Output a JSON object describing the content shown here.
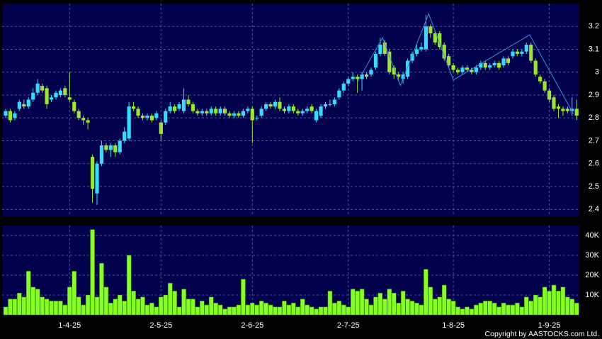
{
  "chart_data": [
    {
      "type": "candlestick",
      "up_color": "#33ddff",
      "down_color": "#9be62e",
      "grid": true,
      "ylim": [
        2.37,
        3.3
      ],
      "yticks": [
        2.4,
        2.5,
        2.6,
        2.7,
        2.8,
        2.9,
        3,
        3.1,
        3.2
      ],
      "open": [
        2.81,
        2.83,
        2.8,
        2.84,
        2.86,
        2.85,
        2.88,
        2.91,
        2.94,
        2.93,
        2.88,
        2.89,
        2.9,
        2.93,
        2.89,
        2.87,
        2.83,
        2.8,
        2.79,
        2.63,
        2.47,
        2.6,
        2.68,
        2.66,
        2.68,
        2.65,
        2.7,
        2.71,
        2.85,
        2.84,
        2.81,
        2.8,
        2.81,
        2.8,
        2.78,
        2.78,
        2.83,
        2.85,
        2.84,
        2.83,
        2.88,
        2.86,
        2.83,
        2.82,
        2.83,
        2.82,
        2.84,
        2.82,
        2.84,
        2.82,
        2.81,
        2.82,
        2.81,
        2.83,
        2.84,
        2.8,
        2.81,
        2.84,
        2.86,
        2.85,
        2.87,
        2.84,
        2.83,
        2.85,
        2.83,
        2.82,
        2.83,
        2.85,
        2.79,
        2.81,
        2.85,
        2.86,
        2.86,
        2.89,
        2.92,
        2.95,
        2.97,
        2.98,
        2.97,
        2.99,
        2.99,
        3.02,
        3.08,
        3.13,
        3.09,
        3.02,
        2.99,
        2.97,
        2.98,
        3.05,
        3.08,
        3.1,
        3.1,
        3.2,
        3.17,
        3.17,
        3.12,
        3.07,
        3.03,
        3.01,
        3.0,
        3.02,
        3.01,
        3.0,
        3.02,
        3.04,
        3.02,
        3.03,
        3.04,
        3.03,
        3.06,
        3.07,
        3.09,
        3.08,
        3.09,
        3.12,
        3.05,
        2.98,
        2.96,
        2.92,
        2.89,
        2.85,
        2.84,
        2.84,
        2.83,
        2.84
      ],
      "high": [
        2.84,
        2.84,
        2.83,
        2.88,
        2.88,
        2.89,
        2.93,
        2.97,
        2.95,
        2.94,
        2.9,
        2.92,
        2.93,
        2.94,
        3.0,
        2.88,
        2.84,
        2.81,
        2.8,
        2.64,
        2.61,
        2.7,
        2.69,
        2.69,
        2.69,
        2.71,
        2.76,
        2.87,
        2.87,
        2.85,
        2.82,
        2.82,
        2.82,
        2.83,
        2.79,
        2.84,
        2.87,
        2.86,
        2.87,
        2.93,
        2.9,
        2.87,
        2.84,
        2.84,
        2.84,
        2.85,
        2.85,
        2.85,
        2.85,
        2.83,
        2.83,
        2.83,
        2.84,
        2.85,
        2.85,
        2.81,
        2.85,
        2.87,
        2.87,
        2.88,
        2.89,
        2.85,
        2.86,
        2.86,
        2.84,
        2.84,
        2.85,
        2.86,
        2.84,
        2.86,
        2.87,
        2.88,
        2.89,
        2.93,
        2.96,
        2.98,
        3.0,
        2.99,
        3.0,
        3.0,
        3.02,
        3.09,
        3.15,
        3.14,
        3.1,
        3.03,
        3.0,
        3.0,
        3.06,
        3.09,
        3.12,
        3.13,
        3.25,
        3.21,
        3.18,
        3.18,
        3.13,
        3.08,
        3.04,
        3.02,
        3.03,
        3.03,
        3.02,
        3.03,
        3.05,
        3.05,
        3.04,
        3.05,
        3.05,
        3.07,
        3.07,
        3.1,
        3.1,
        3.1,
        3.13,
        3.13,
        3.06,
        2.99,
        2.97,
        2.93,
        2.9,
        2.86,
        2.85,
        2.85,
        2.89,
        2.88
      ],
      "low": [
        2.8,
        2.78,
        2.79,
        2.83,
        2.84,
        2.84,
        2.87,
        2.9,
        2.91,
        2.84,
        2.87,
        2.88,
        2.89,
        2.89,
        2.87,
        2.82,
        2.79,
        2.77,
        2.75,
        2.43,
        2.42,
        2.59,
        2.65,
        2.63,
        2.63,
        2.64,
        2.69,
        2.7,
        2.83,
        2.8,
        2.79,
        2.79,
        2.78,
        2.79,
        2.7,
        2.77,
        2.82,
        2.82,
        2.83,
        2.82,
        2.85,
        2.82,
        2.81,
        2.81,
        2.81,
        2.81,
        2.81,
        2.81,
        2.81,
        2.8,
        2.8,
        2.8,
        2.8,
        2.82,
        2.69,
        2.79,
        2.8,
        2.83,
        2.84,
        2.84,
        2.83,
        2.82,
        2.82,
        2.82,
        2.81,
        2.81,
        2.82,
        2.82,
        2.78,
        2.8,
        2.84,
        2.85,
        2.85,
        2.88,
        2.91,
        2.94,
        2.96,
        2.91,
        2.92,
        2.97,
        2.98,
        3.01,
        3.07,
        3.07,
        2.99,
        2.97,
        2.96,
        2.95,
        2.97,
        3.04,
        3.07,
        3.09,
        3.09,
        3.15,
        3.12,
        3.1,
        3.05,
        3.02,
        3.0,
        2.99,
        2.99,
        3.0,
        2.99,
        2.99,
        3.01,
        3.01,
        3.01,
        3.02,
        3.01,
        3.02,
        3.03,
        3.06,
        3.07,
        3.07,
        3.08,
        3.04,
        2.98,
        2.95,
        2.91,
        2.87,
        2.83,
        2.8,
        2.81,
        2.82,
        2.81,
        2.79
      ],
      "close": [
        2.83,
        2.79,
        2.82,
        2.87,
        2.85,
        2.88,
        2.91,
        2.95,
        2.92,
        2.86,
        2.89,
        2.91,
        2.92,
        2.9,
        2.88,
        2.83,
        2.8,
        2.79,
        2.78,
        2.49,
        2.6,
        2.68,
        2.66,
        2.68,
        2.65,
        2.7,
        2.74,
        2.85,
        2.84,
        2.81,
        2.8,
        2.81,
        2.79,
        2.82,
        2.73,
        2.83,
        2.85,
        2.83,
        2.86,
        2.88,
        2.86,
        2.83,
        2.82,
        2.83,
        2.82,
        2.84,
        2.82,
        2.84,
        2.82,
        2.81,
        2.82,
        2.81,
        2.83,
        2.84,
        2.79,
        2.8,
        2.84,
        2.86,
        2.85,
        2.87,
        2.84,
        2.83,
        2.85,
        2.83,
        2.82,
        2.83,
        2.84,
        2.83,
        2.83,
        2.85,
        2.86,
        2.86,
        2.88,
        2.92,
        2.95,
        2.97,
        2.98,
        2.97,
        2.99,
        2.98,
        3.01,
        3.08,
        3.12,
        3.08,
        3.0,
        2.99,
        2.98,
        2.99,
        3.05,
        3.08,
        3.1,
        3.11,
        3.2,
        3.17,
        3.13,
        3.11,
        3.06,
        3.03,
        3.01,
        3.0,
        3.02,
        3.01,
        3.0,
        3.02,
        3.04,
        3.02,
        3.03,
        3.04,
        3.02,
        3.06,
        3.04,
        3.09,
        3.08,
        3.09,
        3.12,
        3.05,
        2.99,
        2.96,
        2.92,
        2.88,
        2.84,
        2.84,
        2.83,
        2.83,
        2.84,
        2.81
      ],
      "trendline": {
        "color": "#3a8fd8",
        "x": [
          77,
          82.5,
          86.4,
          92.6,
          98,
          114.7,
          124.3
        ],
        "y": [
          2.957,
          3.151,
          2.942,
          3.255,
          2.966,
          3.163,
          2.818
        ]
      }
    },
    {
      "type": "bar",
      "color": "#88ff22",
      "grid": true,
      "ylim": [
        0,
        45000
      ],
      "yticks": [
        {
          "value": 10000,
          "label": "10K"
        },
        {
          "value": 20000,
          "label": "20K"
        },
        {
          "value": 30000,
          "label": "30K"
        },
        {
          "value": 40000,
          "label": "40K"
        }
      ],
      "values": [
        4000,
        8000,
        8000,
        11000,
        9000,
        22000,
        14000,
        13000,
        9000,
        8000,
        7000,
        7000,
        7000,
        5000,
        14000,
        22000,
        9000,
        5000,
        10000,
        43000,
        9000,
        26000,
        14000,
        6000,
        8000,
        10000,
        7000,
        30000,
        12000,
        8000,
        9000,
        5000,
        6000,
        4000,
        9000,
        10000,
        16000,
        12000,
        4000,
        13000,
        8000,
        8000,
        4000,
        7000,
        5000,
        9000,
        6000,
        5000,
        3000,
        4000,
        4000,
        5000,
        18000,
        5000,
        6000,
        5000,
        7000,
        6000,
        5000,
        4000,
        4000,
        7000,
        5000,
        6000,
        4000,
        8000,
        5000,
        4000,
        3000,
        4000,
        4000,
        12000,
        6000,
        7000,
        5000,
        4000,
        13000,
        12000,
        13000,
        8000,
        5000,
        9000,
        11000,
        8000,
        13000,
        11000,
        6000,
        12000,
        8000,
        7000,
        6000,
        5000,
        23000,
        14000,
        8000,
        9000,
        15000,
        8000,
        7000,
        4000,
        3000,
        4000,
        3000,
        5000,
        6000,
        7000,
        7000,
        6000,
        4000,
        6000,
        5000,
        5000,
        6000,
        4000,
        9000,
        7000,
        10000,
        9000,
        14000,
        12000,
        15000,
        12000,
        14000,
        9000,
        8000,
        6000
      ],
      "categories": [
        null,
        null,
        null,
        null,
        null,
        null,
        null,
        null,
        null,
        null,
        null,
        null,
        null,
        null,
        "1-4-25",
        null,
        null,
        null,
        null,
        null,
        null,
        null,
        null,
        null,
        null,
        null,
        null,
        null,
        null,
        null,
        null,
        null,
        null,
        null,
        "2-5-25",
        null,
        null,
        null,
        null,
        null,
        null,
        null,
        null,
        null,
        null,
        null,
        null,
        null,
        null,
        null,
        null,
        null,
        null,
        null,
        "2-6-25",
        null,
        null,
        null,
        null,
        null,
        null,
        null,
        null,
        null,
        null,
        null,
        null,
        null,
        null,
        null,
        null,
        null,
        null,
        null,
        null,
        "2-7-25",
        null,
        null,
        null,
        null,
        null,
        null,
        null,
        null,
        null,
        null,
        null,
        null,
        null,
        null,
        null,
        null,
        null,
        null,
        null,
        null,
        null,
        null,
        "1-8-25",
        null,
        null,
        null,
        null,
        null,
        null,
        null,
        null,
        null,
        null,
        null,
        null,
        null,
        null,
        null,
        null,
        null,
        null,
        null,
        null,
        "1-9-25",
        null,
        null,
        null,
        null,
        null,
        null
      ],
      "source": "Copyright by AASTOCKS.com Ltd."
    }
  ]
}
